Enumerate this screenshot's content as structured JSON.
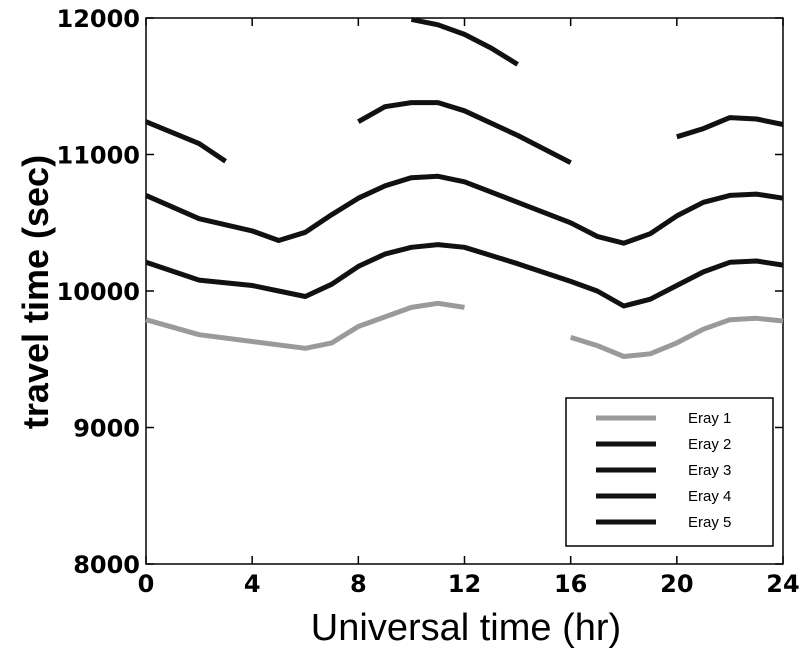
{
  "chart_data": {
    "type": "line",
    "title": "",
    "xlabel": "Universal time (hr)",
    "ylabel": "travel time (sec)",
    "xlim": [
      0,
      24
    ],
    "ylim": [
      8000,
      12000
    ],
    "xticks": [
      0,
      4,
      8,
      12,
      16,
      20,
      24
    ],
    "yticks": [
      8000,
      9000,
      10000,
      11000,
      12000
    ],
    "xtick_labels": [
      "0",
      "4",
      "8",
      "12",
      "16",
      "20",
      "24"
    ],
    "ytick_labels": [
      "8000",
      "9000",
      "10000",
      "11000",
      "12000"
    ],
    "grid": false,
    "legend_position": "bottom-right",
    "series": [
      {
        "name": "Eray 1",
        "color": "#9a9a9a",
        "segments": [
          [
            [
              0,
              9790
            ],
            [
              2,
              9680
            ],
            [
              4,
              9630
            ],
            [
              6,
              9580
            ],
            [
              7,
              9620
            ],
            [
              8,
              9740
            ],
            [
              9,
              9810
            ],
            [
              10,
              9880
            ],
            [
              11,
              9910
            ],
            [
              12,
              9880
            ]
          ],
          [
            [
              16,
              9660
            ],
            [
              17,
              9600
            ],
            [
              18,
              9520
            ],
            [
              19,
              9540
            ],
            [
              20,
              9620
            ],
            [
              21,
              9720
            ],
            [
              22,
              9790
            ],
            [
              23,
              9800
            ],
            [
              24,
              9780
            ]
          ]
        ]
      },
      {
        "name": "Eray 2",
        "color": "#111111",
        "segments": [
          [
            [
              0,
              10210
            ],
            [
              2,
              10080
            ],
            [
              4,
              10040
            ],
            [
              5,
              10000
            ],
            [
              6,
              9960
            ],
            [
              7,
              10050
            ],
            [
              8,
              10180
            ],
            [
              9,
              10270
            ],
            [
              10,
              10320
            ],
            [
              11,
              10340
            ],
            [
              12,
              10320
            ],
            [
              14,
              10200
            ],
            [
              16,
              10070
            ],
            [
              17,
              10000
            ],
            [
              18,
              9890
            ],
            [
              19,
              9940
            ],
            [
              20,
              10040
            ],
            [
              21,
              10140
            ],
            [
              22,
              10210
            ],
            [
              23,
              10220
            ],
            [
              24,
              10190
            ]
          ]
        ]
      },
      {
        "name": "Eray 3",
        "color": "#111111",
        "segments": [
          [
            [
              0,
              10700
            ],
            [
              2,
              10530
            ],
            [
              4,
              10440
            ],
            [
              5,
              10370
            ],
            [
              6,
              10430
            ],
            [
              7,
              10560
            ],
            [
              8,
              10680
            ],
            [
              9,
              10770
            ],
            [
              10,
              10830
            ],
            [
              11,
              10840
            ],
            [
              12,
              10800
            ],
            [
              14,
              10650
            ],
            [
              16,
              10500
            ],
            [
              17,
              10400
            ],
            [
              18,
              10350
            ],
            [
              19,
              10420
            ],
            [
              20,
              10550
            ],
            [
              21,
              10650
            ],
            [
              22,
              10700
            ],
            [
              23,
              10710
            ],
            [
              24,
              10680
            ]
          ]
        ]
      },
      {
        "name": "Eray 4",
        "color": "#111111",
        "segments": [
          [
            [
              0,
              11240
            ],
            [
              2,
              11080
            ],
            [
              3,
              10950
            ]
          ],
          [
            [
              8,
              11240
            ],
            [
              9,
              11350
            ],
            [
              10,
              11380
            ],
            [
              11,
              11380
            ],
            [
              12,
              11320
            ],
            [
              14,
              11140
            ],
            [
              16,
              10940
            ]
          ],
          [
            [
              20,
              11130
            ],
            [
              21,
              11190
            ],
            [
              22,
              11270
            ],
            [
              23,
              11260
            ],
            [
              24,
              11220
            ]
          ]
        ]
      },
      {
        "name": "Eray 5",
        "color": "#111111",
        "segments": [
          [
            [
              10,
              11990
            ],
            [
              11,
              11950
            ],
            [
              12,
              11880
            ],
            [
              13,
              11780
            ],
            [
              14,
              11660
            ]
          ]
        ]
      }
    ]
  }
}
